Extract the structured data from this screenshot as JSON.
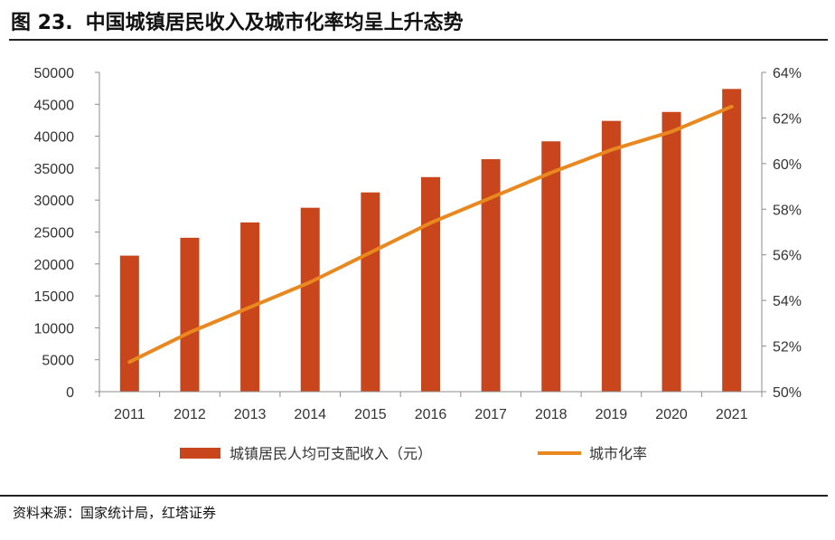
{
  "header": {
    "figure_label": "图 23.",
    "title": "中国城镇居民收入及城市化率均呈上升态势"
  },
  "source": "资料来源：国家统计局，红塔证券",
  "chart_data": {
    "type": "bar+line",
    "categories": [
      "2011",
      "2012",
      "2013",
      "2014",
      "2015",
      "2016",
      "2017",
      "2018",
      "2019",
      "2020",
      "2021"
    ],
    "series": [
      {
        "name": "城镇居民人均可支配收入（元）",
        "type": "bar",
        "axis": "left",
        "color": "#C9451C",
        "values": [
          21300,
          24100,
          26500,
          28800,
          31200,
          33600,
          36400,
          39200,
          42400,
          43800,
          47400
        ]
      },
      {
        "name": "城市化率",
        "type": "line",
        "axis": "right",
        "color": "#E8881E",
        "values": [
          51.3,
          52.6,
          53.7,
          54.8,
          56.1,
          57.4,
          58.5,
          59.6,
          60.6,
          61.4,
          62.5
        ]
      }
    ],
    "y_left": {
      "ylim": [
        0,
        50000
      ],
      "ticks": [
        "0",
        "5000",
        "10000",
        "15000",
        "20000",
        "25000",
        "30000",
        "35000",
        "40000",
        "45000",
        "50000"
      ]
    },
    "y_right": {
      "ylim": [
        50,
        64
      ],
      "ticks": [
        "50%",
        "52%",
        "54%",
        "56%",
        "58%",
        "60%",
        "62%",
        "64%"
      ]
    },
    "grid": false,
    "legend": "bottom-center"
  }
}
